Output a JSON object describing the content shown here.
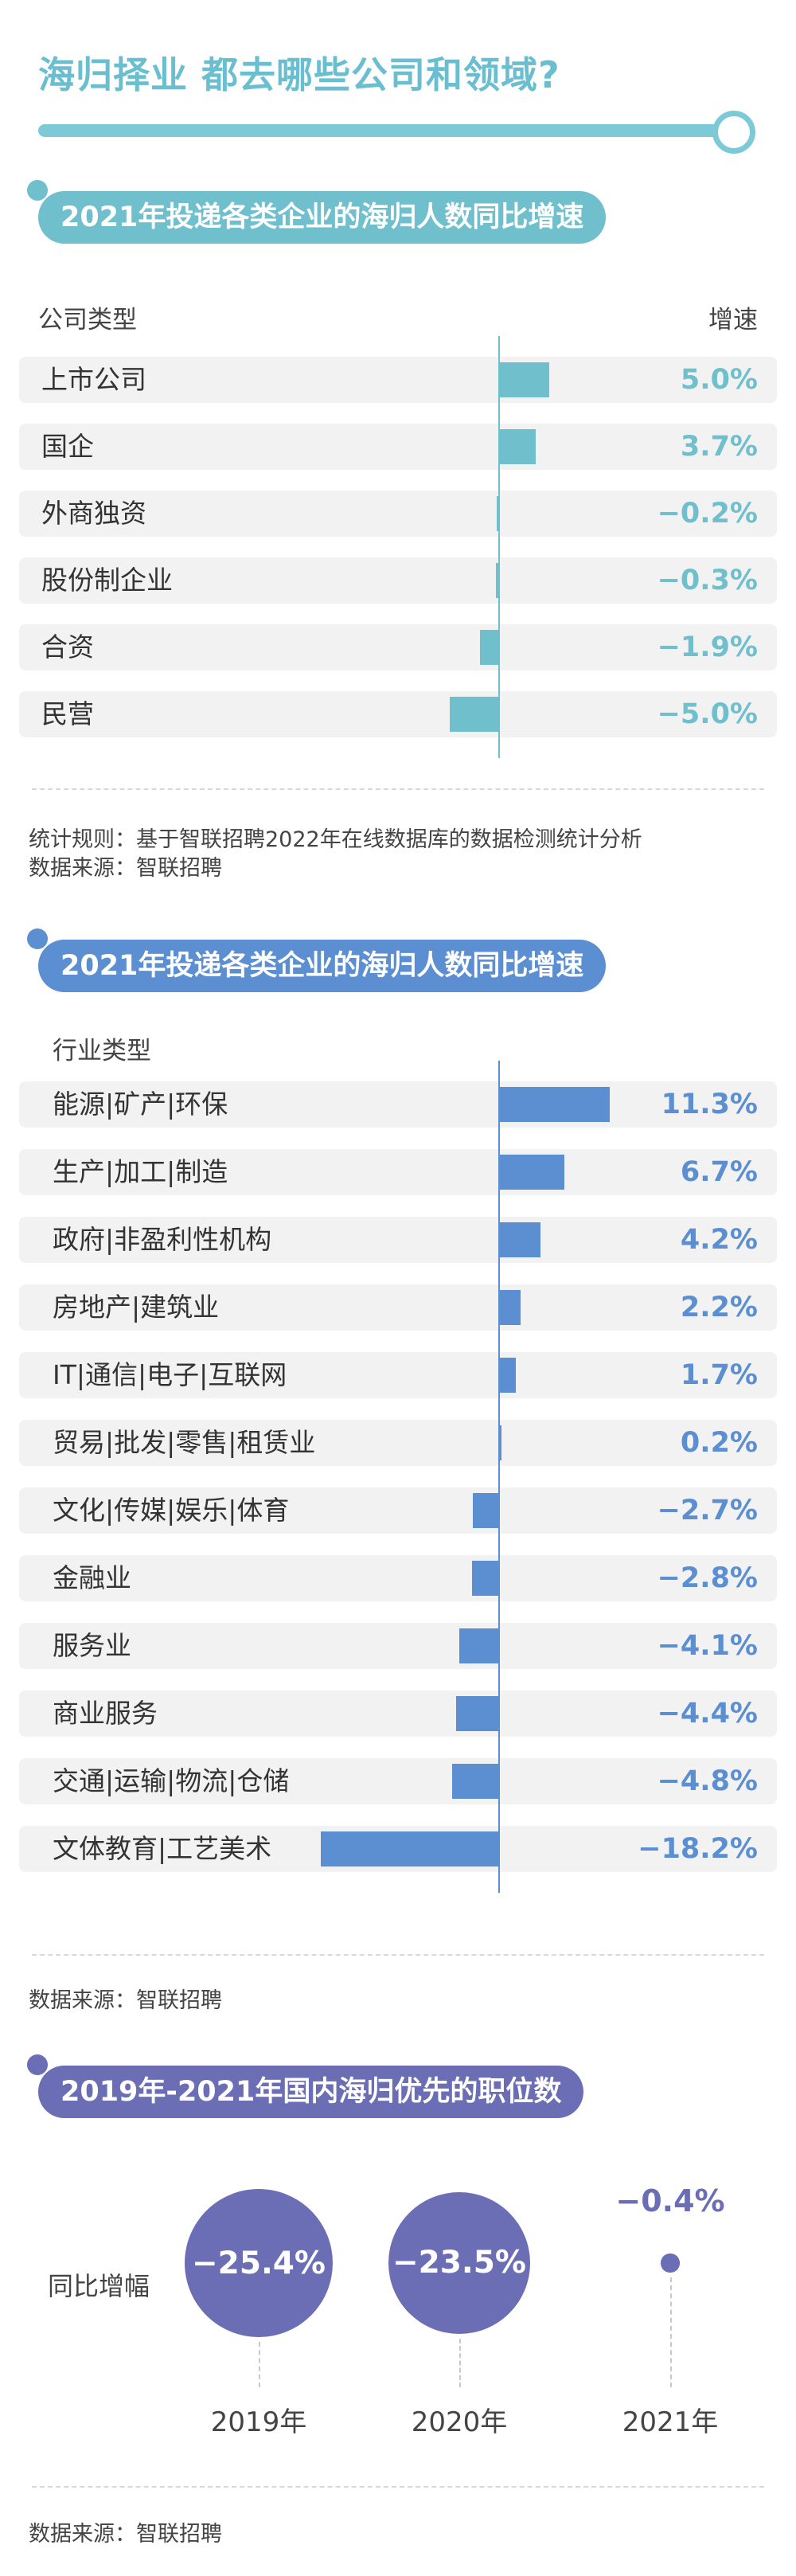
{
  "header": {
    "title": "海归择业  都去哪些公司和领域?"
  },
  "section1": {
    "title": "2021年投递各类企业的海归人数同比增速",
    "col_label": "公司类型",
    "col_value": "增速",
    "notes": [
      "统计规则：基于智联招聘2022年在线数据库的数据检测统计分析",
      "数据来源：智联招聘"
    ]
  },
  "section2": {
    "title": "2021年投递各类企业的海归人数同比增速",
    "col_label": "行业类型",
    "note": "数据来源：智联招聘"
  },
  "section3": {
    "title": "2019年-2021年国内海归优先的职位数",
    "row_label": "同比增幅",
    "note": "数据来源：智联招聘"
  },
  "colors": {
    "teal": "#6fbfcd",
    "blue": "#5b8fd1",
    "purple": "#6b6db5",
    "title": "#69bfd0"
  },
  "chart_data": [
    {
      "type": "bar",
      "orientation": "horizontal",
      "title": "2021年投递各类企业的海归人数同比增速",
      "categories": [
        "上市公司",
        "国企",
        "外商独资",
        "股份制企业",
        "合资",
        "民营"
      ],
      "values": [
        5.0,
        3.7,
        -0.2,
        -0.3,
        -1.9,
        -5.0
      ],
      "labels": [
        "5.0%",
        "3.7%",
        "−0.2%",
        "−0.3%",
        "−1.9%",
        "−5.0%"
      ],
      "unit": "%"
    },
    {
      "type": "bar",
      "orientation": "horizontal",
      "title": "2021年投递各类企业的海归人数同比增速",
      "categories": [
        "能源|矿产|环保",
        "生产|加工|制造",
        "政府|非盈利性机构",
        "房地产|建筑业",
        "IT|通信|电子|互联网",
        "贸易|批发|零售|租赁业",
        "文化|传媒|娱乐|体育",
        "金融业",
        "服务业",
        "商业服务",
        "交通|运输|物流|仓储",
        "文体教育|工艺美术"
      ],
      "values": [
        11.3,
        6.7,
        4.2,
        2.2,
        1.7,
        0.2,
        -2.7,
        -2.8,
        -4.1,
        -4.4,
        -4.8,
        -18.2
      ],
      "labels": [
        "11.3%",
        "6.7%",
        "4.2%",
        "2.2%",
        "1.7%",
        "0.2%",
        "−2.7%",
        "−2.8%",
        "−4.1%",
        "−4.4%",
        "−4.8%",
        "−18.2%"
      ],
      "unit": "%"
    },
    {
      "type": "scatter",
      "title": "2019年-2021年国内海归优先的职位数",
      "categories": [
        "2019年",
        "2020年",
        "2021年"
      ],
      "values": [
        -25.4,
        -23.5,
        -0.4
      ],
      "labels": [
        "−25.4%",
        "−23.5%",
        "−0.4%"
      ],
      "unit": "%"
    }
  ]
}
